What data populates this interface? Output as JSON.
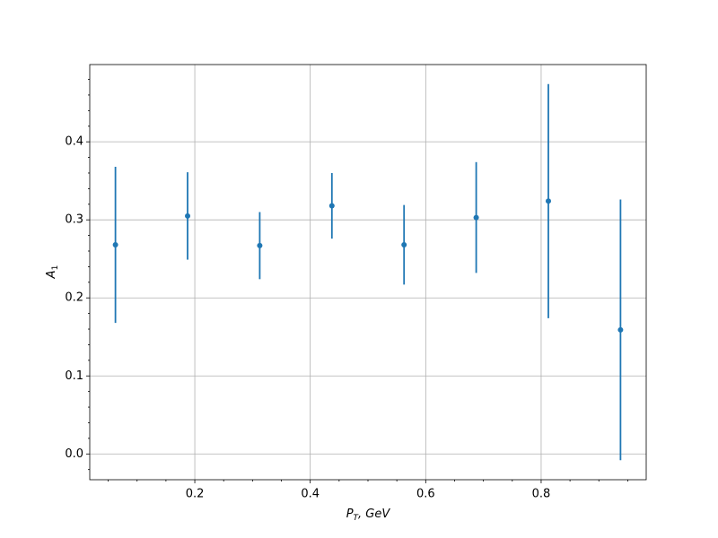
{
  "chart_data": {
    "type": "errorbar",
    "xlabel": {
      "main": "P",
      "sub": "T",
      "rest": ", GeV"
    },
    "ylabel": {
      "main": "A",
      "sub": "1"
    },
    "x": [
      0.0625,
      0.1875,
      0.3125,
      0.4375,
      0.5625,
      0.6875,
      0.8125,
      0.9375
    ],
    "values": [
      0.268,
      0.305,
      0.267,
      0.318,
      0.268,
      0.303,
      0.324,
      0.159
    ],
    "errors": [
      0.1,
      0.056,
      0.043,
      0.042,
      0.051,
      0.071,
      0.15,
      0.167
    ],
    "color": "#1f77b4",
    "xlim": [
      0.018,
      0.982
    ],
    "ylim": [
      -0.033,
      0.499
    ],
    "xticks": [
      0.2,
      0.4,
      0.6,
      0.8
    ],
    "yticks": [
      {
        "value": 0,
        "label": "0.0"
      },
      0.1,
      0.2,
      0.3,
      0.4
    ],
    "xminorticks": [
      0.05,
      0.1,
      0.15,
      0.25,
      0.3,
      0.35,
      0.45,
      0.5,
      0.55,
      0.65,
      0.7,
      0.75,
      0.85,
      0.9,
      0.95
    ],
    "yminorticks": [
      -0.02,
      0.02,
      0.04,
      0.06,
      0.08,
      0.12,
      0.14,
      0.16,
      0.18,
      0.22,
      0.24,
      0.26,
      0.28,
      0.32,
      0.34,
      0.36,
      0.38,
      0.42,
      0.44,
      0.46,
      0.48
    ],
    "grid": true
  }
}
